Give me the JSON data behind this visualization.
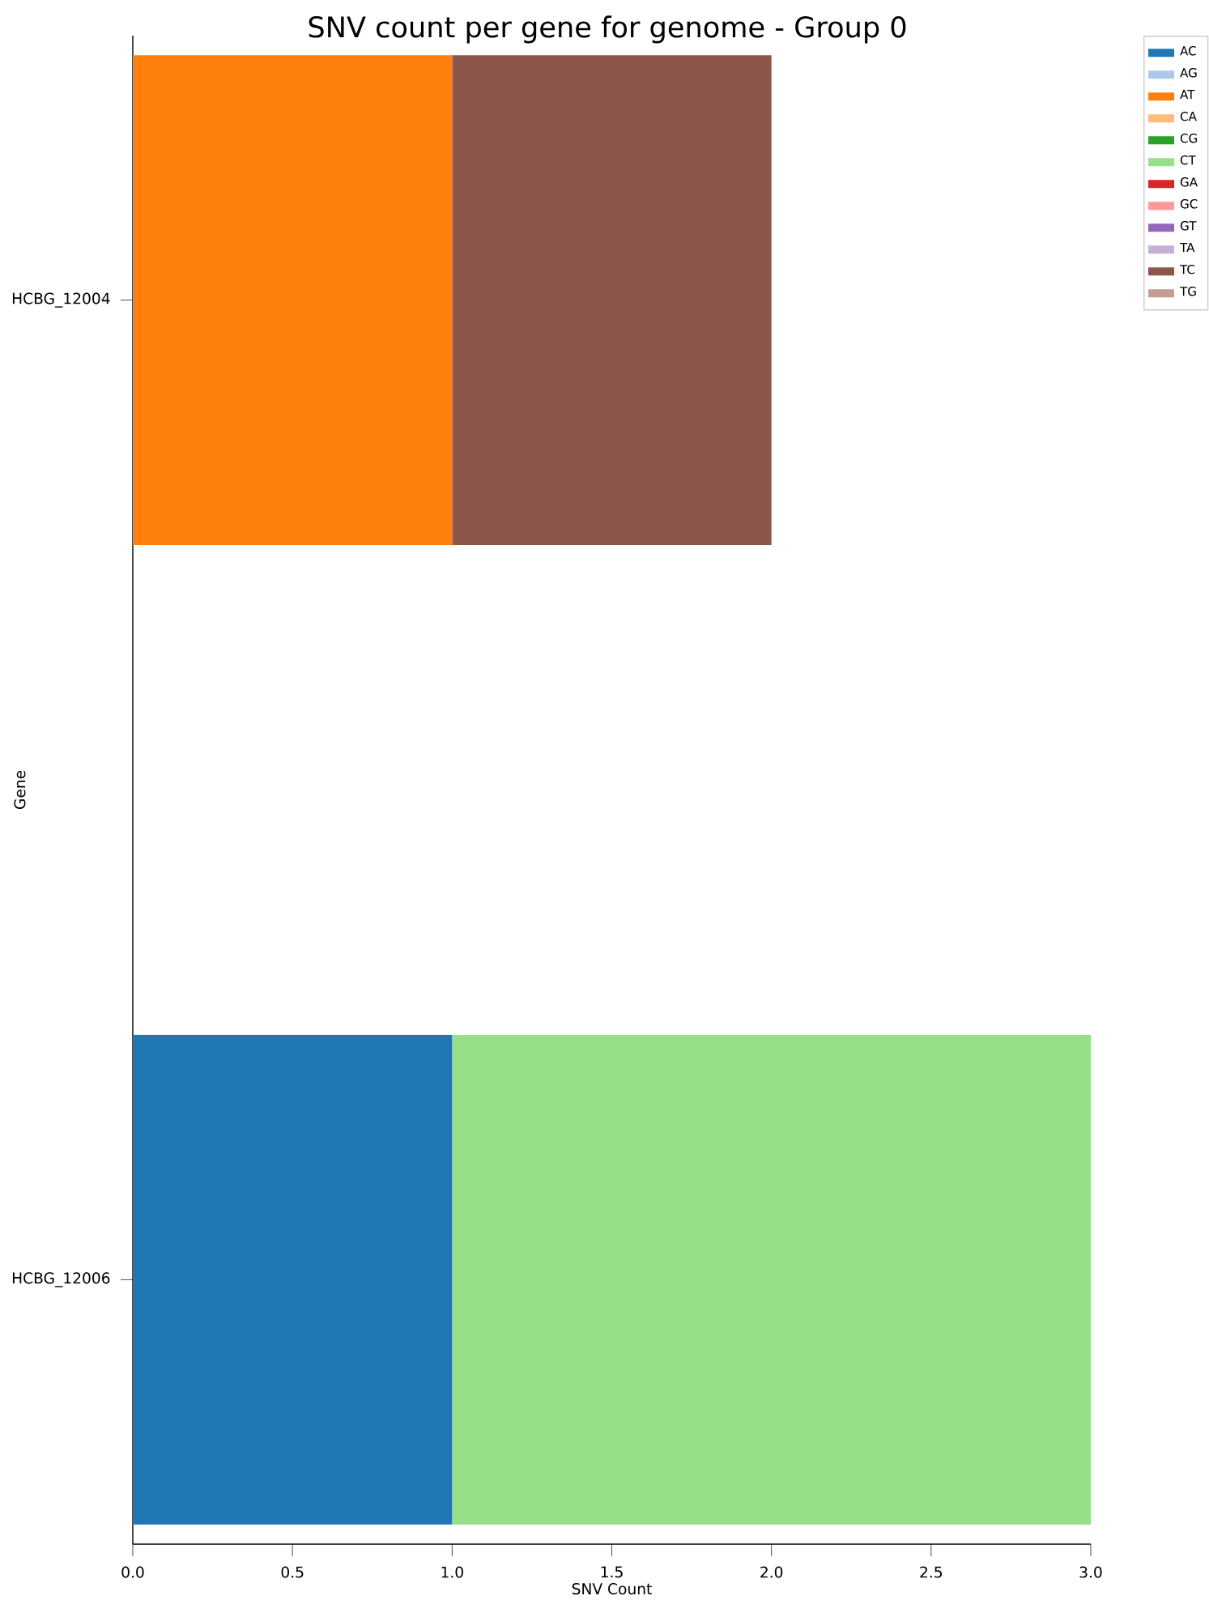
{
  "chart_data": {
    "type": "bar",
    "orientation": "horizontal",
    "stacked": true,
    "title": "SNV count per gene for genome - Group 0",
    "xlabel": "SNV Count",
    "ylabel": "Gene",
    "categories": [
      "HCBG_12004",
      "HCBG_12006"
    ],
    "series": [
      {
        "name": "AC",
        "color": "#1f77b4",
        "values": [
          0,
          1
        ]
      },
      {
        "name": "AG",
        "color": "#aec7e8",
        "values": [
          0,
          0
        ]
      },
      {
        "name": "AT",
        "color": "#ff7f0e",
        "values": [
          1,
          0
        ]
      },
      {
        "name": "CA",
        "color": "#ffbb78",
        "values": [
          0,
          0
        ]
      },
      {
        "name": "CG",
        "color": "#2ca02c",
        "values": [
          0,
          0
        ]
      },
      {
        "name": "CT",
        "color": "#98df8a",
        "values": [
          0,
          2
        ]
      },
      {
        "name": "GA",
        "color": "#d62728",
        "values": [
          0,
          0
        ]
      },
      {
        "name": "GC",
        "color": "#ff9896",
        "values": [
          0,
          0
        ]
      },
      {
        "name": "GT",
        "color": "#9467bd",
        "values": [
          0,
          0
        ]
      },
      {
        "name": "TA",
        "color": "#c5b0d5",
        "values": [
          0,
          0
        ]
      },
      {
        "name": "TC",
        "color": "#8c564b",
        "values": [
          1,
          0
        ]
      },
      {
        "name": "TG",
        "color": "#c49c94",
        "values": [
          0,
          0
        ]
      }
    ],
    "xlim": [
      0,
      3
    ],
    "xticks": [
      {
        "value": 0,
        "label": "0.0"
      },
      {
        "value": 0.5,
        "label": "0.5"
      },
      {
        "value": 1,
        "label": "1.0"
      },
      {
        "value": 1.5,
        "label": "1.5"
      },
      {
        "value": 2,
        "label": "2.0"
      },
      {
        "value": 2.5,
        "label": "2.5"
      },
      {
        "value": 3,
        "label": "3.0"
      }
    ],
    "legend": "top right"
  }
}
